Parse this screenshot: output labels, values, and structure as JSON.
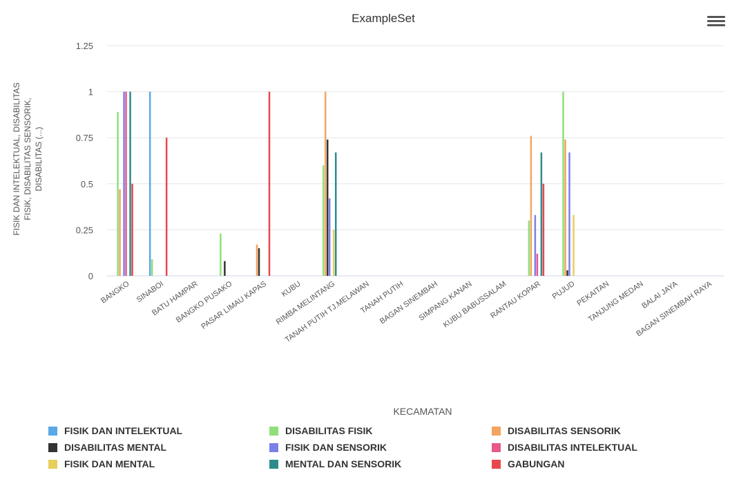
{
  "chart_data": {
    "type": "bar",
    "title": "ExampleSet",
    "xlabel": "KECAMATAN",
    "ylabel": "FISIK DAN INTELEKTUAL, DISABILITAS FISIK, DISABILITAS SENSORIK, DISABILITAS (...)",
    "ylabel_lines": [
      "FISIK DAN INTELEKTUAL, DISABILITAS",
      "FISIK, DISABILITAS SENSORIK,",
      "DISABILITAS (...)"
    ],
    "ylim": [
      0,
      1.25
    ],
    "yticks": [
      0,
      0.25,
      0.5,
      0.75,
      1,
      1.25
    ],
    "ytick_labels": [
      "0",
      "0.25",
      "0.5",
      "0.75",
      "1",
      "1.25"
    ],
    "grid": true,
    "legend_position": "bottom",
    "categories": [
      "BANGKO",
      "SINABOI",
      "BATU HAMPAR",
      "BANGKO PUSAKO",
      "PASAR LIMAU KAPAS",
      "KUBU",
      "RIMBA MELINTANG",
      "TANAH PUTIH TJ.MELAWAN",
      "TANAH PUTIH",
      "BAGAN SINEMBAH",
      "SIMPANG KANAN",
      "KUBU BABUSSALAM",
      "RANTAU KOPAR",
      "PUJUD",
      "PEKAITAN",
      "TANJUNG MEDAN",
      "BALAI JAYA",
      "BAGAN SINEMBAH RAYA"
    ],
    "series": [
      {
        "name": "FISIK DAN INTELEKTUAL",
        "color": "#5aa9e6",
        "values": [
          0,
          1,
          0,
          0,
          0,
          0,
          0,
          0,
          0,
          0,
          0,
          0,
          0,
          0,
          0,
          0,
          0,
          0
        ]
      },
      {
        "name": "DISABILITAS FISIK",
        "color": "#8fe07a",
        "values": [
          0.89,
          0.09,
          0,
          0.23,
          0,
          0,
          0.6,
          0,
          0,
          0,
          0,
          0,
          0.3,
          1,
          0,
          0,
          0,
          0
        ]
      },
      {
        "name": "DISABILITAS SENSORIK",
        "color": "#f4a460",
        "values": [
          0.47,
          0,
          0,
          0,
          0.17,
          0,
          1,
          0,
          0,
          0,
          0,
          0,
          0.76,
          0.74,
          0,
          0,
          0,
          0
        ]
      },
      {
        "name": "DISABILITAS MENTAL",
        "color": "#333333",
        "values": [
          0,
          0,
          0,
          0.08,
          0.15,
          0,
          0.74,
          0,
          0,
          0,
          0,
          0,
          0,
          0.03,
          0,
          0,
          0,
          0
        ]
      },
      {
        "name": "FISIK DAN SENSORIK",
        "color": "#7b7fe8",
        "values": [
          1,
          0,
          0,
          0,
          0,
          0,
          0.42,
          0,
          0,
          0,
          0,
          0,
          0.33,
          0.67,
          0,
          0,
          0,
          0
        ]
      },
      {
        "name": "DISABILITAS INTELEKTUAL",
        "color": "#e8588a",
        "values": [
          1,
          0,
          0,
          0,
          0,
          0,
          0,
          0,
          0,
          0,
          0,
          0,
          0.12,
          0,
          0,
          0,
          0,
          0
        ]
      },
      {
        "name": "FISIK DAN MENTAL",
        "color": "#e6cf5a",
        "values": [
          0,
          0,
          0,
          0,
          0,
          0,
          0.25,
          0,
          0,
          0,
          0,
          0,
          0,
          0.33,
          0,
          0,
          0,
          0
        ]
      },
      {
        "name": "MENTAL DAN SENSORIK",
        "color": "#2e8b8b",
        "values": [
          1,
          0,
          0,
          0,
          0,
          0,
          0.67,
          0,
          0,
          0,
          0,
          0,
          0.67,
          0,
          0,
          0,
          0,
          0
        ]
      },
      {
        "name": "GABUNGAN",
        "color": "#e8474c",
        "values": [
          0.5,
          0.75,
          0,
          0,
          1,
          0,
          0,
          0,
          0,
          0,
          0,
          0,
          0.5,
          0,
          0,
          0,
          0,
          0
        ]
      }
    ]
  },
  "toolbar": {
    "menu_icon": "hamburger-menu-icon"
  }
}
